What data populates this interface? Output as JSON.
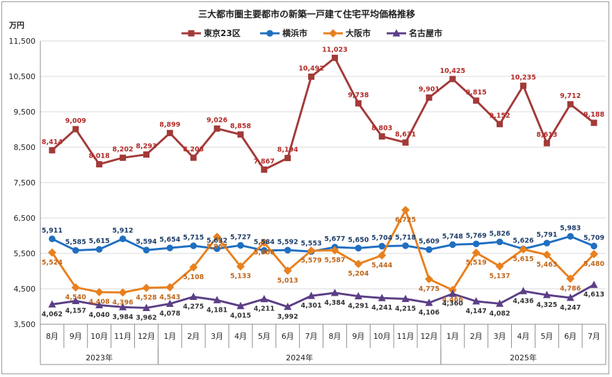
{
  "chart_data": {
    "type": "line",
    "title": "三大都市圏主要都市の新築一戸建て住宅平均価格推移",
    "ylabel": "万円",
    "ylim": [
      3500,
      11500
    ],
    "yticks": [
      "3,500",
      "4,500",
      "5,500",
      "6,500",
      "7,500",
      "8,500",
      "9,500",
      "10,500",
      "11,500"
    ],
    "ytick_values": [
      3500,
      4500,
      5500,
      6500,
      7500,
      8500,
      9500,
      10500,
      11500
    ],
    "categories": [
      "8月",
      "9月",
      "10月",
      "11月",
      "12月",
      "1月",
      "2月",
      "3月",
      "4月",
      "5月",
      "6月",
      "7月",
      "8月",
      "9月",
      "10月",
      "11月",
      "12月",
      "1月",
      "2月",
      "3月",
      "4月",
      "5月",
      "6月",
      "7月"
    ],
    "years": [
      {
        "label": "2023年",
        "start": 0,
        "end": 4
      },
      {
        "label": "2024年",
        "start": 5,
        "end": 16
      },
      {
        "label": "2025年",
        "start": 17,
        "end": 23
      }
    ],
    "grid": true,
    "legend_position": "top",
    "series": [
      {
        "name": "東京23区",
        "color": "#a23a38",
        "marker": "square",
        "label_pos": "above",
        "values": [
          8414,
          9009,
          8018,
          8202,
          8293,
          8899,
          8203,
          9026,
          8858,
          7867,
          8194,
          10492,
          11023,
          9738,
          8803,
          8631,
          9901,
          10425,
          9815,
          9152,
          10235,
          8613,
          9712,
          9188
        ]
      },
      {
        "name": "横浜市",
        "color": "#1f6fc1",
        "marker": "circle",
        "label_pos": "above",
        "values": [
          5911,
          5585,
          5615,
          5912,
          5594,
          5654,
          5715,
          5632,
          5727,
          5584,
          5592,
          5553,
          5677,
          5650,
          5704,
          5718,
          5609,
          5748,
          5769,
          5826,
          5626,
          5791,
          5983,
          5709
        ]
      },
      {
        "name": "大阪市",
        "color": "#e8801e",
        "marker": "diamond",
        "label_pos": "below",
        "values": [
          5524,
          4540,
          4408,
          4396,
          4528,
          4543,
          5108,
          5967,
          5133,
          5806,
          5013,
          5579,
          5587,
          5204,
          5444,
          6725,
          4775,
          4466,
          5519,
          5137,
          5615,
          5463,
          4786,
          5480
        ]
      },
      {
        "name": "名古屋市",
        "color": "#5b3f86",
        "marker": "triangle",
        "label_pos": "below",
        "values": [
          4062,
          4157,
          4040,
          3984,
          3962,
          4078,
          4275,
          4181,
          4015,
          4211,
          3992,
          4301,
          4384,
          4291,
          4241,
          4215,
          4106,
          4360,
          4147,
          4082,
          4436,
          4325,
          4247,
          4613
        ]
      }
    ]
  }
}
